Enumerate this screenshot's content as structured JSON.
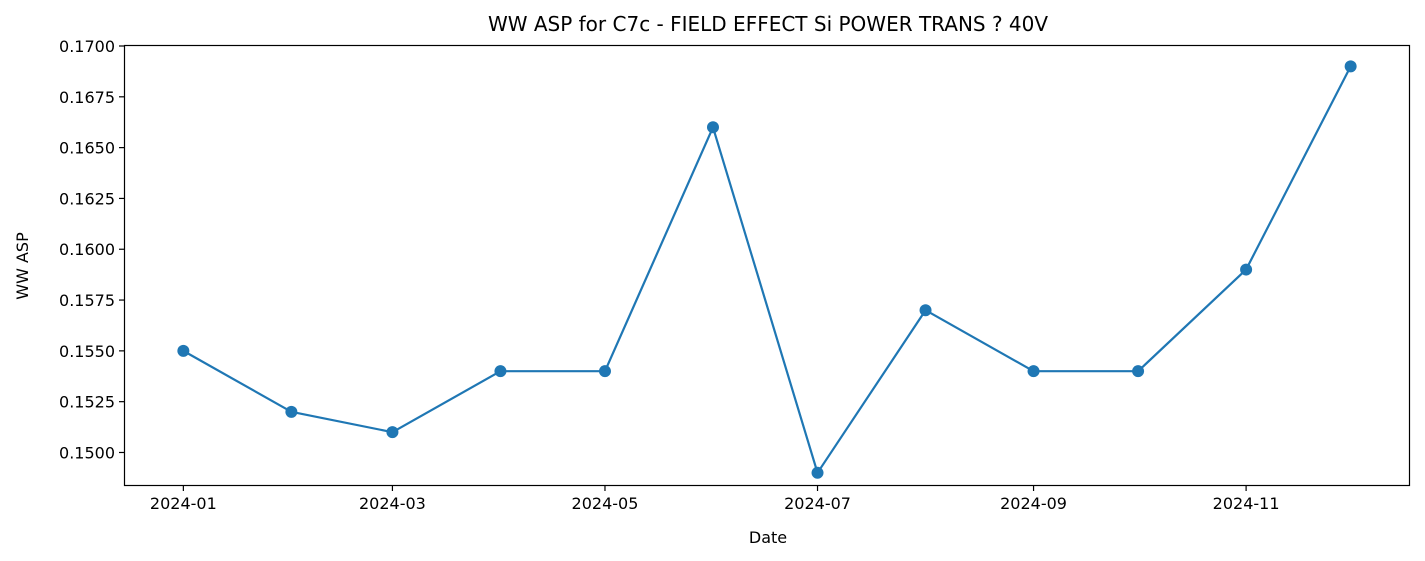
{
  "chart_data": {
    "type": "line",
    "title": "WW ASP for C7c - FIELD EFFECT Si POWER TRANS ? 40V",
    "xlabel": "Date",
    "ylabel": "WW ASP",
    "ylim": [
      0.1484,
      0.17
    ],
    "x_tick_labels": [
      "2024-01",
      "2024-03",
      "2024-05",
      "2024-07",
      "2024-09",
      "2024-11"
    ],
    "y_tick_labels": [
      "0.1500",
      "0.1525",
      "0.1550",
      "0.1575",
      "0.1600",
      "0.1625",
      "0.1650",
      "0.1675",
      "0.1700"
    ],
    "grid": false,
    "series": [
      {
        "color": "#1f77b4",
        "marker": "circle",
        "x": [
          "2024-01",
          "2024-02",
          "2024-03",
          "2024-04",
          "2024-05",
          "2024-06",
          "2024-07",
          "2024-08",
          "2024-09",
          "2024-10",
          "2024-11",
          "2024-12"
        ],
        "y": [
          0.155,
          0.152,
          0.151,
          0.154,
          0.154,
          0.166,
          0.149,
          0.157,
          0.154,
          0.154,
          0.159,
          0.169
        ]
      }
    ]
  }
}
